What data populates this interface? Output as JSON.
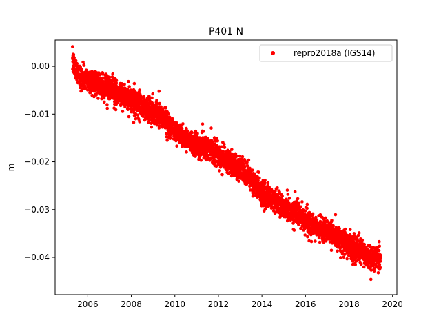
{
  "chart_data": {
    "type": "scatter",
    "title": "P401 N",
    "xlabel": "",
    "ylabel": "m",
    "xlim": [
      2004.5,
      2020.2
    ],
    "ylim": [
      -0.0478,
      0.0055
    ],
    "xticks": [
      2006,
      2008,
      2010,
      2012,
      2014,
      2016,
      2018,
      2020
    ],
    "yticks": [
      0.0,
      -0.01,
      -0.02,
      -0.03,
      -0.04
    ],
    "ytick_labels": [
      "0.00",
      "−0.01",
      "−0.02",
      "−0.03",
      "−0.04"
    ],
    "grid": false,
    "legend": {
      "position": "top-right",
      "entries": [
        "repro2018a (IGS14)"
      ]
    },
    "series": [
      {
        "name": "repro2018a (IGS14)",
        "color": "#ff0000",
        "marker": "circle",
        "x_range": [
          2005.3,
          2019.45
        ],
        "trend": [
          [
            2005.3,
            0.0008
          ],
          [
            2005.7,
            -0.0025
          ],
          [
            2006.5,
            -0.0035
          ],
          [
            2007.0,
            -0.0045
          ],
          [
            2007.5,
            -0.006
          ],
          [
            2008.0,
            -0.0068
          ],
          [
            2008.7,
            -0.009
          ],
          [
            2009.3,
            -0.01
          ],
          [
            2010.0,
            -0.0135
          ],
          [
            2010.5,
            -0.015
          ],
          [
            2011.0,
            -0.0165
          ],
          [
            2011.5,
            -0.017
          ],
          [
            2012.0,
            -0.0185
          ],
          [
            2012.5,
            -0.02
          ],
          [
            2013.0,
            -0.0215
          ],
          [
            2013.5,
            -0.0235
          ],
          [
            2014.0,
            -0.0265
          ],
          [
            2014.5,
            -0.028
          ],
          [
            2015.0,
            -0.0295
          ],
          [
            2015.5,
            -0.0305
          ],
          [
            2016.0,
            -0.0325
          ],
          [
            2016.5,
            -0.0335
          ],
          [
            2017.0,
            -0.0345
          ],
          [
            2017.5,
            -0.036
          ],
          [
            2018.0,
            -0.0375
          ],
          [
            2018.5,
            -0.0385
          ],
          [
            2019.0,
            -0.0405
          ],
          [
            2019.45,
            -0.04
          ]
        ],
        "scatter_sd": 0.0012,
        "n_points": 4300
      }
    ]
  }
}
